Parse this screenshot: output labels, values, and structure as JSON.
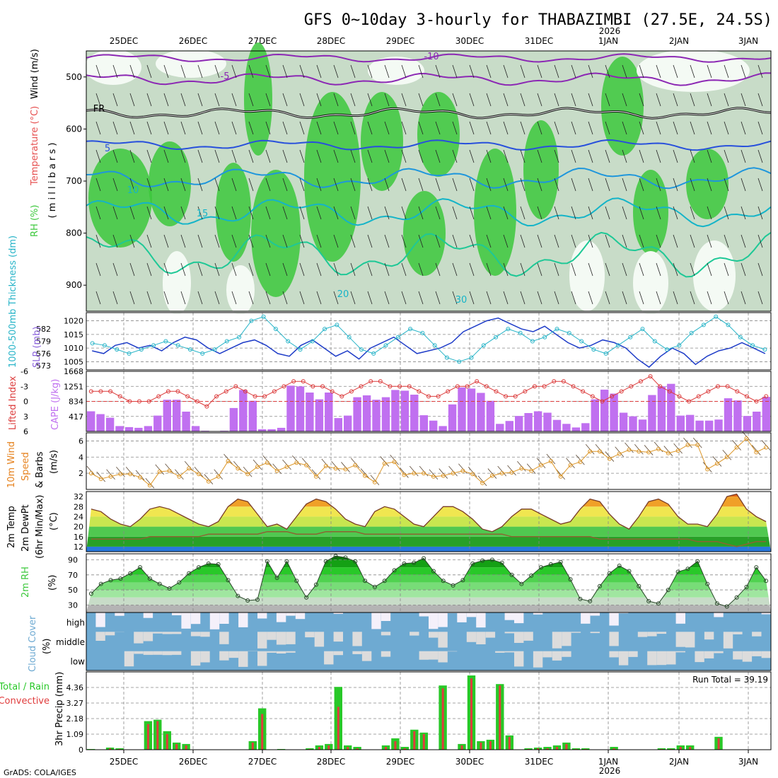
{
  "title": "GFS 0~10day 3-hourly for THABAZIMBI (27.5E, 24.5S)",
  "credit": "GrADS: COLA/IGES",
  "date_labels": [
    "25DEC",
    "26DEC",
    "27DEC",
    "28DEC",
    "29DEC",
    "30DEC",
    "31DEC",
    "1JAN",
    "2JAN",
    "3JAN"
  ],
  "year_label": "2026",
  "colors": {
    "rh_green": "#3cc83c",
    "rh_light": "#c8dcc8",
    "temp_purple": "#8c28b4",
    "temp_blue": "#2850dc",
    "temp_cyan": "#14b4c8",
    "temp_orange": "#e68c14",
    "slp_line": "#1e3cc8",
    "thick_line": "#28b4c8",
    "li_line": "#dc3c3c",
    "cape_bar": "#c070f0",
    "wind_line": "#dc9628",
    "rain_total": "#28c828",
    "rain_conv": "#e03c3c",
    "cloud_blue": "#6eaad2",
    "cloud_light": "#dcdcdc"
  },
  "chart_data": [
    {
      "type": "heatmap",
      "panel": "upper-air",
      "ylabel_parts": [
        "RH (%)",
        "Temperature (°C)",
        "Wind (m/s)"
      ],
      "yaxis_label": "( m i l l i b a r s )",
      "yticks": [
        500,
        600,
        700,
        800,
        900
      ],
      "ylim": [
        450,
        950
      ],
      "contour_labels": [
        "-10",
        "-5",
        "FR",
        "5",
        "10",
        "15",
        "20",
        "30"
      ]
    },
    {
      "type": "line",
      "panel": "slp-thickness",
      "ylabel_left": "1000-500mb Thickness (dm)",
      "ylabel_right": "SLP (mb)",
      "yticks_left": [
        573,
        576,
        579,
        582
      ],
      "yticks_right": [
        1005,
        1010,
        1015,
        1020
      ],
      "series": [
        {
          "name": "SLP (mb)",
          "values": [
            1009,
            1008,
            1011,
            1012,
            1010,
            1011,
            1009,
            1012,
            1014,
            1013,
            1010,
            1008,
            1010,
            1012,
            1013,
            1011,
            1008,
            1007,
            1011,
            1013,
            1010,
            1007,
            1009,
            1006,
            1010,
            1012,
            1014,
            1011,
            1008,
            1009,
            1010,
            1012,
            1016,
            1018,
            1020,
            1021,
            1019,
            1017,
            1016,
            1018,
            1015,
            1012,
            1010,
            1011,
            1013,
            1012,
            1010,
            1006,
            1003,
            1007,
            1010,
            1008,
            1004,
            1007,
            1009,
            1010,
            1012,
            1010,
            1008
          ]
        },
        {
          "name": "1000-500mb Thickness (dm)",
          "values": [
            578.5,
            578,
            577,
            576,
            577,
            578,
            579,
            578,
            577,
            576,
            577,
            579,
            580,
            584,
            585,
            582,
            579,
            577,
            579,
            582,
            583,
            580,
            577,
            576,
            578,
            580,
            582,
            581,
            578,
            575,
            574,
            575,
            578,
            580,
            582,
            581,
            579,
            580,
            582,
            581,
            579,
            577,
            576,
            578,
            580,
            582,
            579,
            577,
            578,
            581,
            583,
            585,
            583,
            580,
            578,
            577
          ]
        }
      ]
    },
    {
      "type": "bar",
      "panel": "cape-li",
      "ylabel_left": "Lifted Index",
      "ylabel_right": "CAPE (J/kg)",
      "yticks_left": [
        "-6",
        "-3",
        "0",
        "3",
        "6"
      ],
      "yticks_right": [
        417,
        834,
        1251,
        1668
      ],
      "series": [
        {
          "name": "CAPE (J/kg)",
          "values": [
            560,
            480,
            380,
            150,
            120,
            100,
            150,
            440,
            880,
            880,
            550,
            150,
            20,
            10,
            20,
            650,
            1150,
            850,
            60,
            60,
            100,
            1270,
            1250,
            1080,
            890,
            1080,
            370,
            440,
            950,
            1000,
            880,
            950,
            1150,
            1130,
            1020,
            450,
            300,
            150,
            750,
            1220,
            1190,
            1070,
            850,
            210,
            290,
            430,
            510,
            560,
            520,
            320,
            210,
            110,
            230,
            890,
            1160,
            1050,
            520,
            420,
            330,
            1010,
            1250,
            1320,
            440,
            460,
            300,
            300,
            330,
            920,
            860,
            430,
            550,
            960
          ]
        },
        {
          "name": "Lifted Index",
          "values": [
            -2,
            -2,
            -2,
            -1,
            0,
            0,
            0,
            -1,
            -2,
            -2,
            -1,
            0,
            1,
            -1,
            -2,
            -3,
            -2,
            -1,
            -1,
            -2,
            -3,
            -4,
            -4,
            -3,
            -3,
            -2,
            -1,
            -2,
            -3,
            -4,
            -4,
            -3,
            -3,
            -3,
            -2,
            -1,
            -1,
            -2,
            -3,
            -3,
            -4,
            -3,
            -2,
            -1,
            -1,
            -2,
            -3,
            -3,
            -4,
            -4,
            -3,
            -2,
            -1,
            0,
            -1,
            -2,
            -3,
            -4,
            -5,
            -3,
            -2,
            -1,
            0,
            -1,
            -2,
            -3,
            -3,
            -2,
            -1,
            0,
            -1
          ]
        }
      ]
    },
    {
      "type": "line",
      "panel": "wind10m",
      "ylabel": [
        "10m Wind",
        "Speed",
        "& Barbs",
        "(m/s)"
      ],
      "yticks": [
        2,
        4,
        6
      ],
      "series": [
        {
          "name": "10m Wind Speed",
          "values": [
            2.0,
            1.3,
            1.6,
            1.9,
            1.9,
            1.5,
            0.5,
            2.2,
            2.3,
            1.6,
            2.6,
            1.9,
            1.0,
            1.6,
            3.5,
            2.6,
            1.9,
            2.8,
            3.3,
            2.3,
            2.8,
            3.3,
            3.0,
            1.6,
            2.9,
            2.6,
            2.5,
            3.0,
            1.7,
            0.9,
            3.2,
            3.4,
            1.8,
            2.0,
            2.0,
            1.6,
            1.7,
            2.0,
            2.3,
            1.9,
            0.8,
            1.7,
            2.0,
            2.1,
            2.6,
            2.3,
            3.0,
            3.5,
            1.6,
            3.0,
            3.4,
            4.7,
            4.7,
            3.8,
            4.4,
            4.9,
            4.7,
            4.6,
            5.0,
            4.5,
            4.8,
            5.5,
            5.5,
            2.5,
            3.2,
            4.0,
            5.2,
            6.3,
            4.6,
            5.2
          ]
        }
      ]
    },
    {
      "type": "area",
      "panel": "temp2m",
      "ylabel": [
        "2m Temp",
        "2m DewPt",
        "(6hr Min/Max)",
        "(°C)"
      ],
      "yticks": [
        12,
        16,
        20,
        24,
        28,
        32
      ],
      "series": [
        {
          "name": "2m Temp",
          "values": [
            27,
            26,
            23,
            21,
            20,
            23,
            27,
            28,
            27,
            25,
            23,
            21,
            20,
            22,
            28,
            31,
            30,
            25,
            20,
            21,
            19,
            24,
            29,
            31,
            30,
            27,
            23,
            21,
            20,
            26,
            28,
            27,
            24,
            21,
            20,
            24,
            28,
            28,
            26,
            23,
            19,
            18,
            20,
            24,
            27,
            27,
            25,
            23,
            21,
            22,
            27,
            31,
            30,
            25,
            21,
            19,
            24,
            30,
            31,
            29,
            24,
            21,
            21,
            20,
            25,
            32,
            33,
            27,
            24,
            22
          ]
        },
        {
          "name": "2m DewPt",
          "values": [
            15,
            15,
            15,
            15,
            15,
            15,
            16,
            16,
            16,
            16,
            16,
            16,
            17,
            17,
            17,
            17,
            17,
            17,
            18,
            18,
            18,
            17,
            17,
            17,
            18,
            18,
            18,
            18,
            17,
            17,
            17,
            17,
            17,
            17,
            17,
            17,
            17,
            17,
            17,
            17,
            17,
            17,
            17,
            16,
            16,
            16,
            16,
            16,
            16,
            16,
            16,
            16,
            15,
            15,
            15,
            15,
            15,
            15,
            15,
            15,
            15,
            15,
            14,
            14,
            14,
            13,
            12,
            13,
            14,
            14
          ]
        }
      ]
    },
    {
      "type": "area",
      "panel": "rh2m",
      "ylabel": [
        "2m RH",
        "(%)"
      ],
      "yticks": [
        30,
        50,
        70,
        90
      ],
      "series": [
        {
          "name": "2m RH",
          "values": [
            45,
            58,
            63,
            65,
            72,
            80,
            65,
            58,
            52,
            60,
            72,
            80,
            85,
            84,
            63,
            42,
            36,
            37,
            88,
            66,
            88,
            62,
            40,
            57,
            88,
            95,
            93,
            88,
            62,
            54,
            62,
            76,
            85,
            86,
            92,
            75,
            62,
            56,
            63,
            85,
            89,
            90,
            86,
            70,
            58,
            69,
            80,
            84,
            87,
            64,
            38,
            35,
            55,
            72,
            82,
            75,
            55,
            35,
            32,
            50,
            74,
            78,
            88,
            58,
            32,
            28,
            40,
            54,
            80,
            62
          ]
        }
      ]
    },
    {
      "type": "heatmap",
      "panel": "cloud",
      "ylabel": [
        "Cloud Cover",
        "(%)"
      ],
      "rows": [
        "high",
        "middle",
        "low"
      ]
    },
    {
      "type": "bar",
      "panel": "precip",
      "ylabel": [
        "3hr Precip (mm)"
      ],
      "legend_total": "Total / Rain",
      "legend_conv": "Convective",
      "run_total": "Run Total = 39.19",
      "yticks": [
        "0",
        "1.09",
        "2.18",
        "3.27",
        "4.36"
      ],
      "series": [
        {
          "name": "Total",
          "values": [
            0.05,
            0,
            0.15,
            0.1,
            0,
            0,
            2.0,
            2.1,
            1.3,
            0.5,
            0.4,
            0,
            0,
            0,
            0,
            0,
            0,
            0.6,
            2.9,
            0,
            0.05,
            0,
            0,
            0.1,
            0.3,
            0.4,
            4.4,
            0.3,
            0.2,
            0,
            0,
            0.3,
            0.8,
            0.2,
            1.4,
            1.2,
            0,
            4.5,
            0,
            0.4,
            5.2,
            0.6,
            0.7,
            4.6,
            1.0,
            0,
            0.1,
            0.15,
            0.2,
            0.3,
            0.5,
            0.1,
            0.1,
            0,
            0,
            0.2,
            0,
            0,
            0,
            0,
            0.1,
            0.1,
            0.3,
            0.3,
            0,
            0,
            0.9,
            0,
            0,
            0
          ]
        },
        {
          "name": "Convective",
          "values": [
            0.03,
            0,
            0.1,
            0.05,
            0,
            0,
            1.8,
            2.0,
            1.1,
            0.4,
            0.3,
            0,
            0,
            0,
            0,
            0,
            0,
            0.5,
            2.5,
            0,
            0.03,
            0,
            0,
            0.05,
            0.2,
            0.3,
            3.0,
            0.2,
            0.1,
            0,
            0,
            0.2,
            0.6,
            0.1,
            1.3,
            1.1,
            0,
            4.3,
            0,
            0.3,
            5.0,
            0.5,
            0.6,
            4.5,
            0.9,
            0,
            0.05,
            0.1,
            0.1,
            0.2,
            0.4,
            0.05,
            0.05,
            0,
            0,
            0.1,
            0,
            0,
            0,
            0,
            0.05,
            0.05,
            0.2,
            0.2,
            0,
            0,
            0.8,
            0,
            0,
            0
          ]
        }
      ]
    }
  ]
}
